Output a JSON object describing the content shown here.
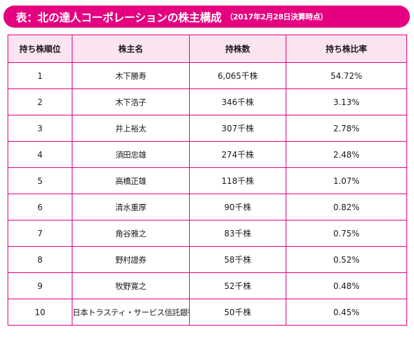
{
  "title": {
    "main": "表：北の達人コーポレーションの株主構成",
    "note": "（2017年2月28日決算時点）"
  },
  "colors": {
    "accent": "#e4007f",
    "header_bg": "#fbe3ef"
  },
  "table": {
    "headers": [
      "持ち株順位",
      "株主名",
      "持株数",
      "持ち株比率"
    ],
    "rows": [
      {
        "rank": "1",
        "name": "木下勝寿",
        "shares": "6,065千株",
        "ratio": "54.72%"
      },
      {
        "rank": "2",
        "name": "木下浩子",
        "shares": "346千株",
        "ratio": "3.13%"
      },
      {
        "rank": "3",
        "name": "井上裕太",
        "shares": "307千株",
        "ratio": "2.78%"
      },
      {
        "rank": "4",
        "name": "須田忠雄",
        "shares": "274千株",
        "ratio": "2.48%"
      },
      {
        "rank": "5",
        "name": "高橋正雄",
        "shares": "118千株",
        "ratio": "1.07%"
      },
      {
        "rank": "6",
        "name": "清水重厚",
        "shares": "90千株",
        "ratio": "0.82%"
      },
      {
        "rank": "7",
        "name": "角谷雅之",
        "shares": "83千株",
        "ratio": "0.75%"
      },
      {
        "rank": "8",
        "name": "野村證券",
        "shares": "58千株",
        "ratio": "0.52%"
      },
      {
        "rank": "9",
        "name": "牧野寛之",
        "shares": "52千株",
        "ratio": "0.48%"
      },
      {
        "rank": "10",
        "name": "日本トラスティ・サービス信託銀行",
        "shares": "50千株",
        "ratio": "0.45%"
      }
    ]
  }
}
